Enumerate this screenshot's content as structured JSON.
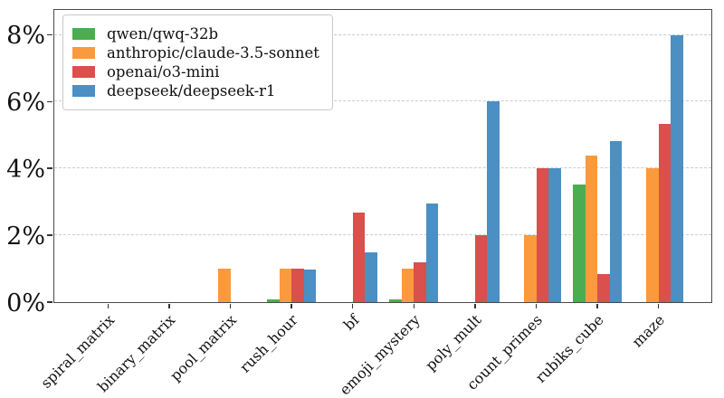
{
  "chart_data": {
    "type": "bar",
    "title": "",
    "xlabel": "",
    "ylabel": "",
    "categories": [
      "spiral_matrix",
      "binary_matrix",
      "pool_matrix",
      "rush_hour",
      "bf",
      "emoji_mystery",
      "poly_mult",
      "count_primes",
      "rubiks_cube",
      "maze"
    ],
    "series": [
      {
        "name": "qwen/qwq-32b",
        "color": "#4cad50",
        "values": [
          0,
          0,
          0,
          0.08,
          0,
          0.08,
          0,
          0,
          3.53,
          0
        ]
      },
      {
        "name": "anthropic/claude-3.5-sonnet",
        "color": "#fb9a3c",
        "values": [
          0,
          0,
          1.0,
          1.0,
          0,
          1.0,
          0,
          2.0,
          4.4,
          4.0
        ]
      },
      {
        "name": "openai/o3-mini",
        "color": "#d9504c",
        "values": [
          0,
          0,
          0,
          1.0,
          2.67,
          1.2,
          2.0,
          4.0,
          0.83,
          5.33
        ]
      },
      {
        "name": "deepseek/deepseek-r1",
        "color": "#4b8fc3",
        "values": [
          0,
          0,
          0,
          0.97,
          1.5,
          2.95,
          6.0,
          4.0,
          4.82,
          8.0
        ]
      }
    ],
    "ytick_labels": [
      "0%",
      "2%",
      "4%",
      "6%",
      "8%"
    ],
    "ytick_values": [
      0,
      2,
      4,
      6,
      8
    ],
    "ylim": [
      0,
      8.8
    ],
    "grid": "horizontal-dashed",
    "legend_position": "upper-left",
    "axis_color": "#4a4a4a",
    "gridline_color": "#cdcdcd"
  }
}
